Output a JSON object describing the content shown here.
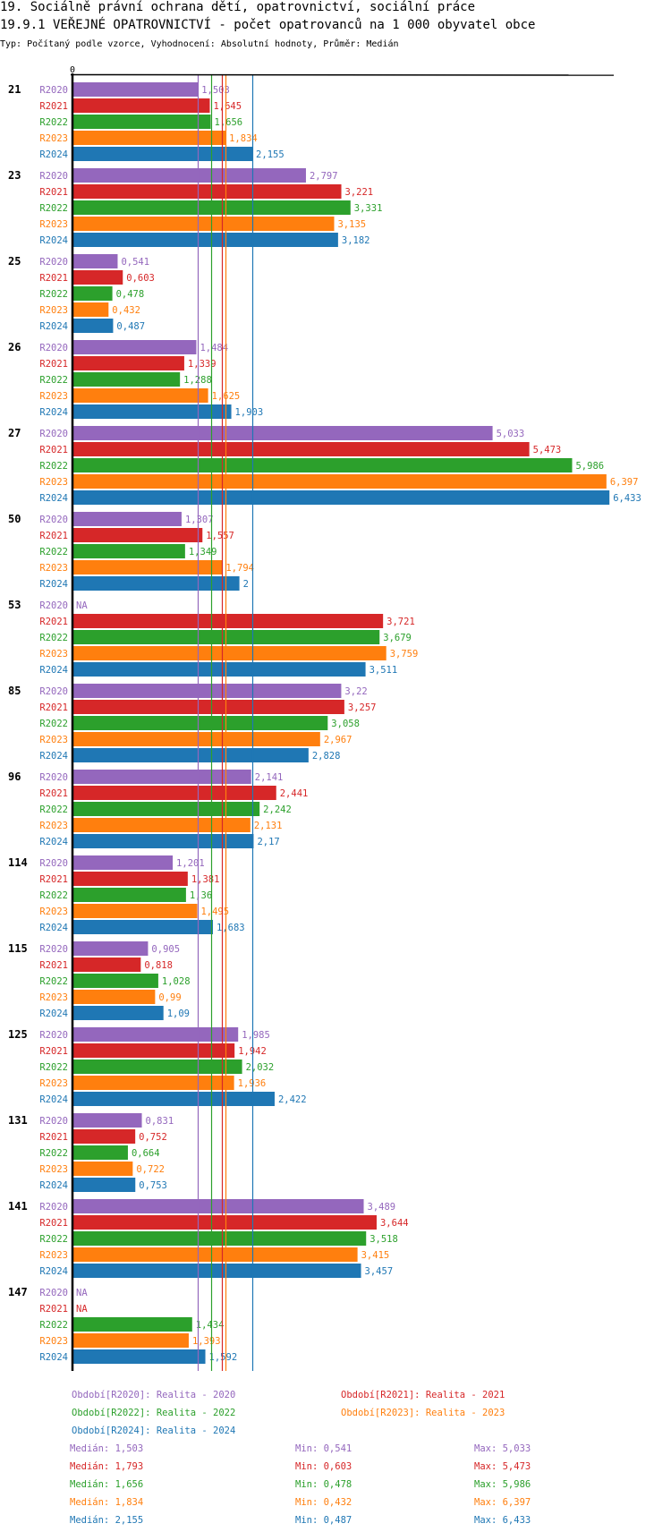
{
  "header": {
    "title1": "19. Sociálně právní ochrana dětí, opatrovnictví, sociální práce",
    "title2": "19.9.1 VEŘEJNÉ OPATROVNICTVÍ - počet opatrovanců na 1 000 obyvatel obce",
    "subtitle": "Typ: Počítaný podle vzorce, Vyhodnocení: Absolutní hodnoty, Průměr: Medián"
  },
  "chart_data": {
    "type": "bar",
    "orientation": "horizontal",
    "title": "19.9.1 VEŘEJNÉ OPATROVNICTVÍ - počet opatrovanců na 1 000 obyvatel obce",
    "xlabel": "",
    "ylabel": "",
    "x_tick_labels": [
      "0"
    ],
    "xlim": [
      0,
      6.5
    ],
    "decimal_separator": ",",
    "grid": false,
    "categories": [
      "21",
      "23",
      "25",
      "26",
      "27",
      "50",
      "53",
      "85",
      "96",
      "114",
      "115",
      "125",
      "131",
      "141",
      "147"
    ],
    "series": [
      {
        "name": "R2020",
        "color": "#9467bd",
        "values": [
          1.503,
          2.797,
          0.541,
          1.484,
          5.033,
          1.307,
          null,
          3.22,
          2.141,
          1.201,
          0.905,
          1.985,
          0.831,
          3.489,
          null
        ]
      },
      {
        "name": "R2021",
        "color": "#d62728",
        "values": [
          1.645,
          3.221,
          0.603,
          1.339,
          5.473,
          1.557,
          3.721,
          3.257,
          2.441,
          1.381,
          0.818,
          1.942,
          0.752,
          3.644,
          null
        ]
      },
      {
        "name": "R2022",
        "color": "#2ca02c",
        "values": [
          1.656,
          3.331,
          0.478,
          1.288,
          5.986,
          1.349,
          3.679,
          3.058,
          2.242,
          1.36,
          1.028,
          2.032,
          0.664,
          3.518,
          1.434
        ]
      },
      {
        "name": "R2023",
        "color": "#ff7f0e",
        "values": [
          1.834,
          3.135,
          0.432,
          1.625,
          6.397,
          1.794,
          3.759,
          2.967,
          2.131,
          1.495,
          0.99,
          1.936,
          0.722,
          3.415,
          1.393
        ]
      },
      {
        "name": "R2024",
        "color": "#1f77b4",
        "values": [
          2.155,
          3.182,
          0.487,
          1.903,
          6.433,
          2,
          3.511,
          2.828,
          2.17,
          1.683,
          1.09,
          2.422,
          0.753,
          3.457,
          1.592
        ]
      }
    ],
    "na_label": "NA",
    "median_lines": [
      {
        "series": "R2020",
        "value": 1.503
      },
      {
        "series": "R2021",
        "value": 1.793
      },
      {
        "series": "R2022",
        "value": 1.656
      },
      {
        "series": "R2023",
        "value": 1.834
      },
      {
        "series": "R2024",
        "value": 2.155
      }
    ],
    "legend": {
      "periods": [
        {
          "series": "R2020",
          "text": "Období[R2020]: Realita - 2020"
        },
        {
          "series": "R2021",
          "text": "Období[R2021]: Realita - 2021"
        },
        {
          "series": "R2022",
          "text": "Období[R2022]: Realita - 2022"
        },
        {
          "series": "R2023",
          "text": "Období[R2023]: Realita - 2023"
        },
        {
          "series": "R2024",
          "text": "Období[R2024]: Realita - 2024"
        }
      ],
      "stats": [
        {
          "series": "R2020",
          "median": "Medián: 1,503",
          "min": "Min: 0,541",
          "max": "Max: 5,033"
        },
        {
          "series": "R2021",
          "median": "Medián: 1,793",
          "min": "Min: 0,603",
          "max": "Max: 5,473"
        },
        {
          "series": "R2022",
          "median": "Medián: 1,656",
          "min": "Min: 0,478",
          "max": "Max: 5,986"
        },
        {
          "series": "R2023",
          "median": "Medián: 1,834",
          "min": "Min: 0,432",
          "max": "Max: 6,397"
        },
        {
          "series": "R2024",
          "median": "Medián: 2,155",
          "min": "Min: 0,487",
          "max": "Max: 6,433"
        }
      ],
      "placement": "bottom"
    }
  }
}
